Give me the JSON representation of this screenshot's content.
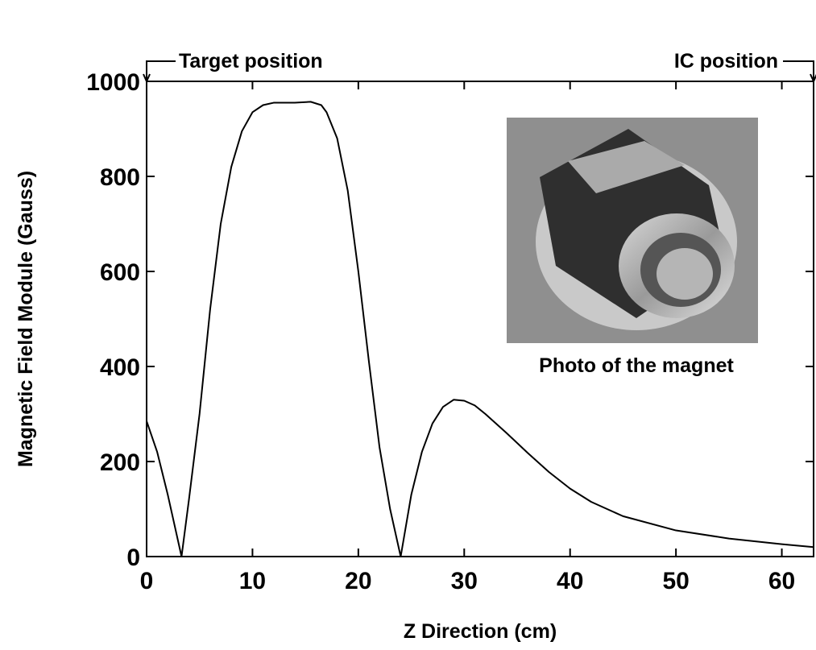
{
  "chart_data": {
    "type": "line",
    "x_label": "Z Direction (cm)",
    "y_label": "Magnetic Field Module (Gauss)",
    "annotations": [
      "Target position",
      "IC position",
      "Photo of the magnet"
    ],
    "series": [
      {
        "color": "#000000",
        "x": [
          0,
          1,
          2,
          3.3,
          4,
          5,
          6,
          7,
          8,
          9,
          10,
          11,
          12,
          14,
          15.5,
          16.5,
          17,
          18,
          19,
          20,
          21,
          22,
          23,
          24,
          25,
          26,
          27,
          28,
          29,
          30,
          31,
          32,
          34,
          36,
          38,
          40,
          42,
          45,
          50,
          55,
          60,
          63
        ],
        "values": [
          285,
          220,
          130,
          0,
          120,
          300,
          520,
          700,
          820,
          895,
          935,
          950,
          955,
          955,
          957,
          950,
          935,
          880,
          770,
          600,
          410,
          230,
          100,
          0,
          130,
          220,
          280,
          315,
          330,
          328,
          318,
          300,
          260,
          218,
          178,
          143,
          115,
          85,
          55,
          38,
          26,
          20
        ]
      }
    ],
    "xlim": [
      0,
      63
    ],
    "xticks": [
      0,
      10,
      20,
      30,
      40,
      50,
      60
    ],
    "ylim": [
      0,
      1000
    ],
    "yticks": [
      0,
      200,
      400,
      600,
      800,
      1000
    ]
  }
}
